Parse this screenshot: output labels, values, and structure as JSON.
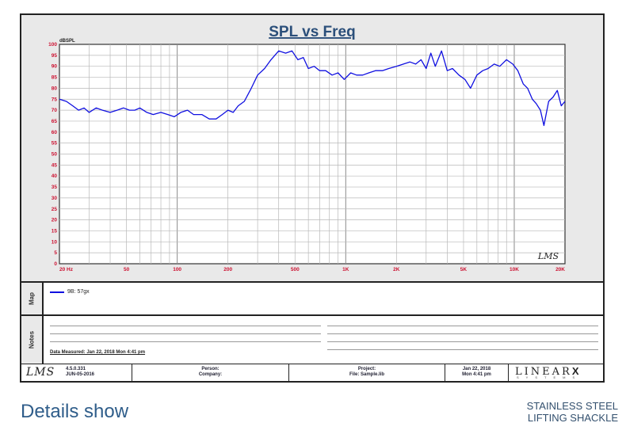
{
  "chart_data": {
    "type": "line",
    "title": "SPL vs Freq",
    "ylabel": "dBSPL",
    "xlabel": "",
    "x_scale": "log",
    "xlim": [
      20,
      20000
    ],
    "ylim": [
      0,
      100
    ],
    "y_ticks": [
      0,
      5,
      10,
      15,
      20,
      25,
      30,
      35,
      40,
      45,
      50,
      55,
      60,
      65,
      70,
      75,
      80,
      85,
      90,
      95,
      100
    ],
    "x_tick_labels": [
      {
        "value": 20,
        "label": "20  Hz"
      },
      {
        "value": 50,
        "label": "50"
      },
      {
        "value": 100,
        "label": "100"
      },
      {
        "value": 200,
        "label": "200"
      },
      {
        "value": 500,
        "label": "500"
      },
      {
        "value": 1000,
        "label": "1K"
      },
      {
        "value": 2000,
        "label": "2K"
      },
      {
        "value": 5000,
        "label": "5K"
      },
      {
        "value": 10000,
        "label": "10K"
      },
      {
        "value": 20000,
        "label": "20K"
      }
    ],
    "grid": true,
    "series": [
      {
        "name": "9B: 57gx",
        "color": "#1010e0",
        "x": [
          20,
          22,
          24,
          26,
          28,
          30,
          33,
          36,
          40,
          44,
          48,
          52,
          56,
          60,
          66,
          72,
          80,
          88,
          96,
          105,
          115,
          125,
          140,
          155,
          170,
          185,
          200,
          215,
          230,
          250,
          275,
          300,
          330,
          360,
          400,
          440,
          480,
          520,
          560,
          600,
          650,
          700,
          760,
          830,
          900,
          980,
          1070,
          1160,
          1260,
          1370,
          1500,
          1650,
          1800,
          2000,
          2200,
          2400,
          2600,
          2800,
          3000,
          3200,
          3400,
          3700,
          4000,
          4300,
          4700,
          5100,
          5500,
          6000,
          6500,
          7000,
          7600,
          8200,
          9000,
          9800,
          10500,
          11300,
          12000,
          12800,
          13500,
          14300,
          15000,
          16000,
          17000,
          18000,
          19000,
          20000
        ],
        "values": [
          75,
          74,
          72,
          70,
          71,
          69,
          71,
          70,
          69,
          70,
          71,
          70,
          70,
          71,
          69,
          68,
          69,
          68,
          67,
          69,
          70,
          68,
          68,
          66,
          66,
          68,
          70,
          69,
          72,
          74,
          80,
          86,
          89,
          93,
          97,
          96,
          97,
          93,
          94,
          89,
          90,
          88,
          88,
          86,
          87,
          84,
          87,
          86,
          86,
          87,
          88,
          88,
          89,
          90,
          91,
          92,
          91,
          93,
          89,
          96,
          90,
          97,
          88,
          89,
          86,
          84,
          80,
          86,
          88,
          89,
          91,
          90,
          93,
          91,
          88,
          82,
          80,
          75,
          73,
          70,
          63,
          74,
          76,
          79,
          72,
          74
        ]
      }
    ]
  },
  "map_panel": {
    "label": "Map",
    "legend_label": "9B: 57gx"
  },
  "notes_panel": {
    "label": "Notes",
    "date_measured": "Data Measured: Jan 22, 2018  Mon  4:41 pm"
  },
  "plot_logo": "LMS",
  "footer": {
    "logo": "LMS",
    "version_line1": "4.5.0.331",
    "version_line2": "JUN-05-2016",
    "person_label": "Person:",
    "company_label": "Company:",
    "project_label": "Project:",
    "file_label": "File: Sample.lib",
    "date_line1": "Jan 22, 2018",
    "date_line2": "Mon  4:41 pm",
    "brand": "LINEAR",
    "brand_x": "X",
    "brand_sub": "SYSTEMS"
  },
  "caption_left": "Details show",
  "caption_right_line1": "STAINLESS STEEL",
  "caption_right_line2": "LIFTING SHACKLE",
  "colors": {
    "trace": "#1010e0",
    "axis_numbers": "#cc1030",
    "title": "#2b4f7a"
  }
}
